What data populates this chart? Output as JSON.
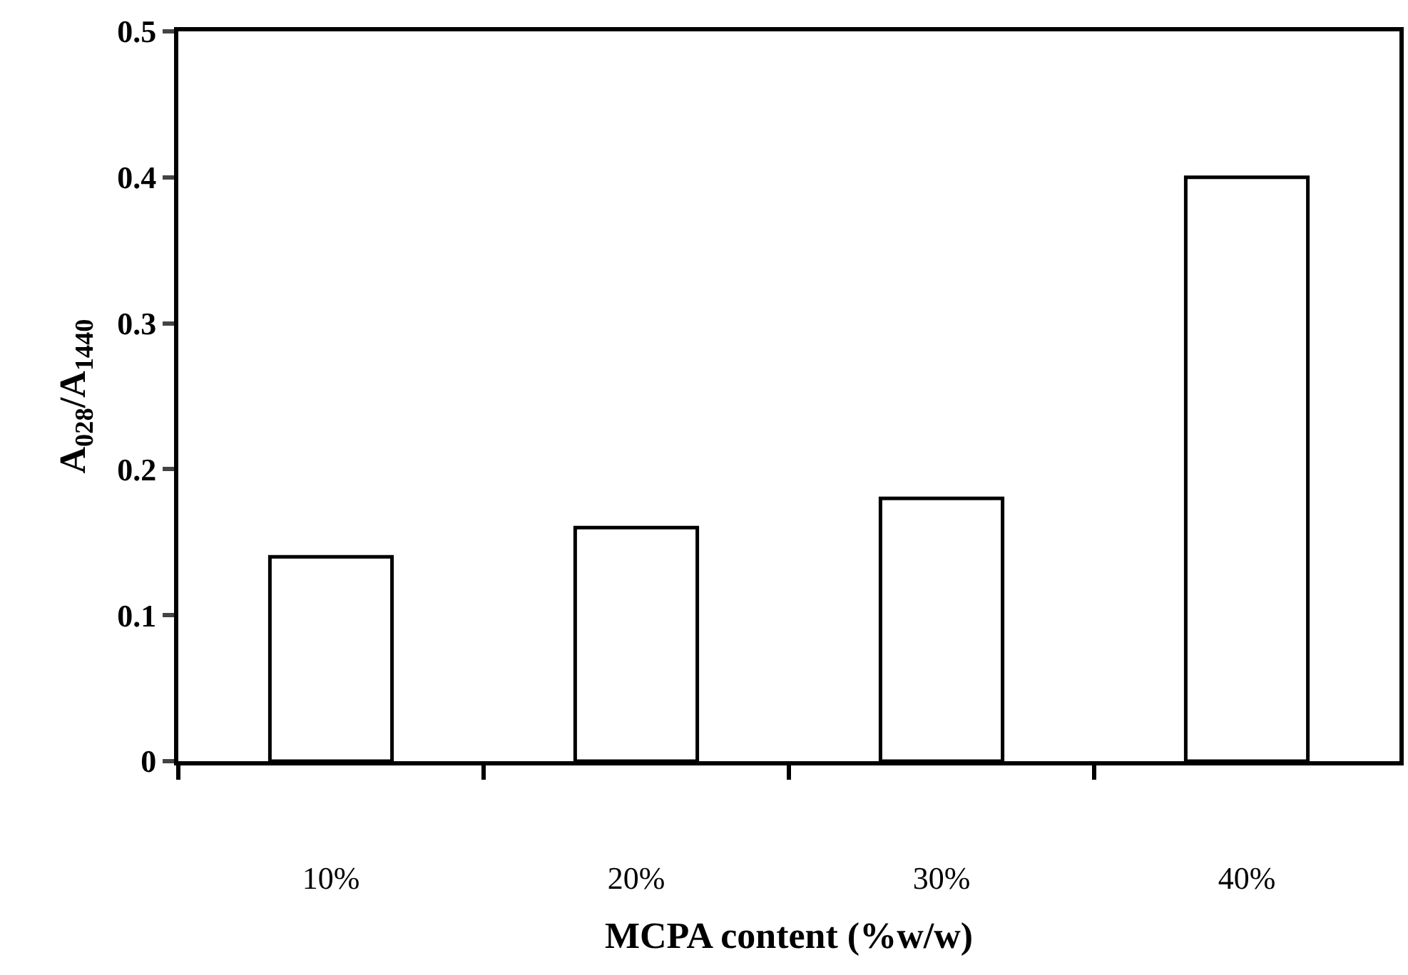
{
  "chart_data": {
    "type": "bar",
    "categories": [
      "10%",
      "20%",
      "30%",
      "40%"
    ],
    "values": [
      0.14,
      0.16,
      0.18,
      0.4
    ],
    "color": "#ffffff",
    "xlabel": "MCPA content (%w/w)",
    "ylabel": "A$_{028}$/A$_{1440}$",
    "ylim": [
      0,
      0.5
    ],
    "yticks": [
      0,
      0.1,
      0.2,
      0.3,
      0.4,
      0.5
    ]
  }
}
